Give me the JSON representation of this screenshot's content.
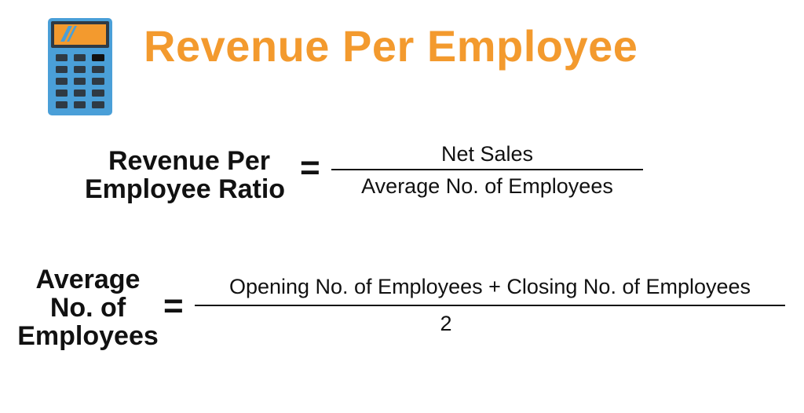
{
  "header": {
    "title": "Revenue Per Employee",
    "title_color": "#f39a2e",
    "icon": "calculator-icon"
  },
  "formula_1": {
    "lhs_line1": "Revenue Per",
    "lhs_line2": "Employee Ratio",
    "equals": "=",
    "numerator": "Net Sales",
    "denominator": "Average No. of Employees"
  },
  "formula_2": {
    "lhs_line1": "Average",
    "lhs_line2": "No. of",
    "lhs_line3": "Employees",
    "equals": "=",
    "numerator": "Opening No. of Employees + Closing No. of Employees",
    "denominator": "2"
  },
  "colors": {
    "accent": "#f39a2e",
    "calculator_body": "#4a9fd8",
    "calculator_screen": "#f39a2e",
    "calculator_buttons": "#2f3a44",
    "text": "#111111"
  }
}
